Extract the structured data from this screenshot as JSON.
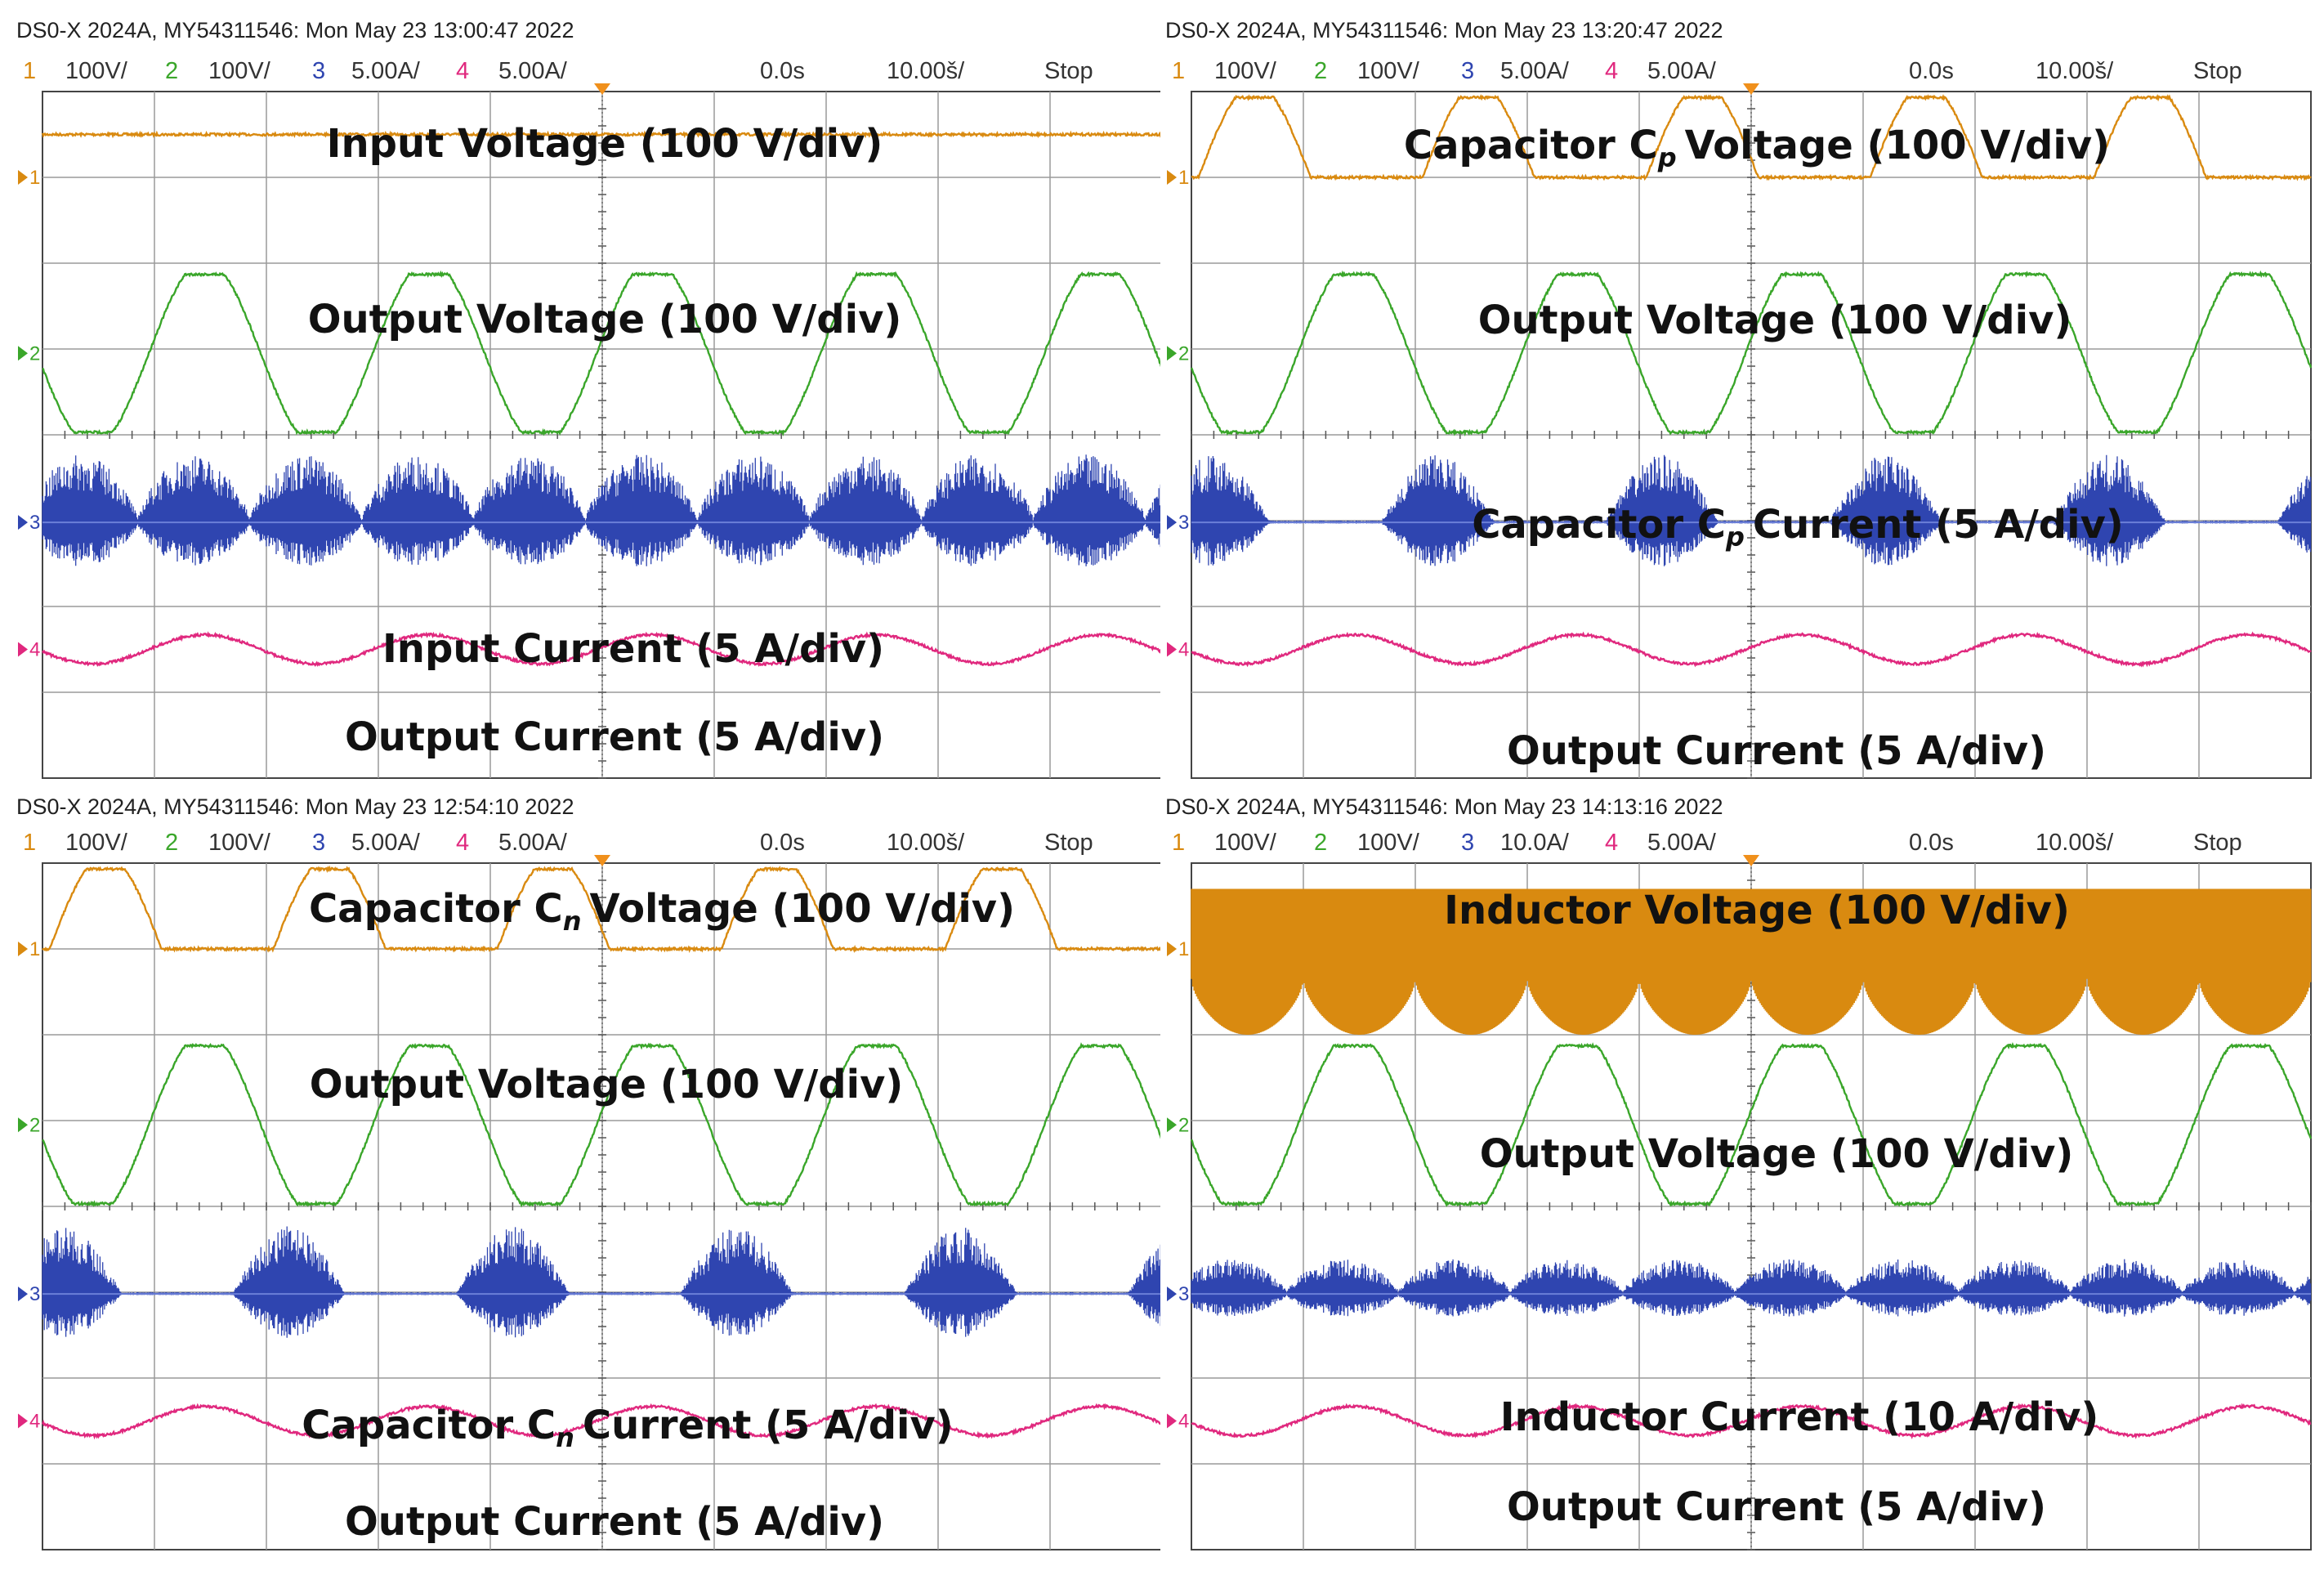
{
  "colors": {
    "ch1": "#d98a10",
    "ch2": "#3aa62a",
    "ch3": "#2f45b0",
    "ch4": "#e0287e",
    "grid": "#9a9a9a",
    "trigger": "#f0901c"
  },
  "scopes": [
    {
      "header": "DS0-X 2024A, MY54311546: Mon May 23 13:00:47 2022",
      "settings": {
        "ch1": {
          "num": "1",
          "scale": "100V/"
        },
        "ch2": {
          "num": "2",
          "scale": "100V/"
        },
        "ch3": {
          "num": "3",
          "scale": "5.00A/"
        },
        "ch4": {
          "num": "4",
          "scale": "5.00A/"
        },
        "delay": "0.0s",
        "timebase": "10.00š/",
        "state": "Stop"
      },
      "markers": [
        "1",
        "2",
        "3",
        "4"
      ],
      "labels": [
        "Input Voltage (100 V/div)",
        "Output Voltage (100 V/div)",
        "Input Current (5 A/div)",
        "Output Current (5 A/div)"
      ],
      "chart_data": {
        "type": "line",
        "x_unit": "ms",
        "x_per_div": 10,
        "divisions": {
          "x": 10,
          "y": 8
        },
        "series": [
          {
            "channel": "1",
            "kind": "dc",
            "level_div": 0.5
          },
          {
            "channel": "2",
            "kind": "sine",
            "amplitude_div": 1.0,
            "cycles": 5,
            "clipped": true
          },
          {
            "channel": "3",
            "kind": "switching-bursts",
            "bursts_per_screen": 10,
            "peak_div": 0.5
          },
          {
            "channel": "4",
            "kind": "sine",
            "amplitude_div": 0.17,
            "cycles": 5
          }
        ]
      }
    },
    {
      "header": "DS0-X 2024A, MY54311546: Mon May 23 13:20:47 2022",
      "settings": {
        "ch1": {
          "num": "1",
          "scale": "100V/"
        },
        "ch2": {
          "num": "2",
          "scale": "100V/"
        },
        "ch3": {
          "num": "3",
          "scale": "5.00A/"
        },
        "ch4": {
          "num": "4",
          "scale": "5.00A/"
        },
        "delay": "0.0s",
        "timebase": "10.00š/",
        "state": "Stop"
      },
      "markers": [
        "1",
        "2",
        "3",
        "4"
      ],
      "labels": [
        "Capacitor C",
        "p",
        "Voltage (100 V/div)",
        "Output Voltage (100 V/div)",
        "Capacitor C",
        "p",
        "Current (5 A/div)",
        "Output Current (5 A/div)"
      ],
      "chart_data": {
        "type": "line",
        "x_unit": "ms",
        "x_per_div": 10,
        "divisions": {
          "x": 10,
          "y": 8
        },
        "series": [
          {
            "channel": "1",
            "kind": "half-wave",
            "amplitude_div": 1.0,
            "half_cycles": 5
          },
          {
            "channel": "2",
            "kind": "sine",
            "amplitude_div": 1.0,
            "cycles": 5,
            "clipped": true
          },
          {
            "channel": "3",
            "kind": "switching-bursts",
            "bursts_per_screen": 5,
            "peak_div": 0.5
          },
          {
            "channel": "4",
            "kind": "sine",
            "amplitude_div": 0.17,
            "cycles": 5
          }
        ]
      }
    },
    {
      "header": "DS0-X 2024A, MY54311546: Mon May 23 12:54:10 2022",
      "settings": {
        "ch1": {
          "num": "1",
          "scale": "100V/"
        },
        "ch2": {
          "num": "2",
          "scale": "100V/"
        },
        "ch3": {
          "num": "3",
          "scale": "5.00A/"
        },
        "ch4": {
          "num": "4",
          "scale": "5.00A/"
        },
        "delay": "0.0s",
        "timebase": "10.00š/",
        "state": "Stop"
      },
      "markers": [
        "1",
        "2",
        "3",
        "4"
      ],
      "labels": [
        "Capacitor C",
        "n",
        "Voltage (100 V/div)",
        "Output Voltage (100 V/div)",
        "Capacitor C",
        "n",
        "Current (5 A/div)",
        "Output Current (5 A/div)"
      ],
      "chart_data": {
        "type": "line",
        "x_unit": "ms",
        "x_per_div": 10,
        "divisions": {
          "x": 10,
          "y": 8
        },
        "series": [
          {
            "channel": "1",
            "kind": "half-wave",
            "amplitude_div": 1.0,
            "half_cycles": 5
          },
          {
            "channel": "2",
            "kind": "sine",
            "amplitude_div": 1.0,
            "cycles": 5,
            "clipped": true
          },
          {
            "channel": "3",
            "kind": "switching-bursts",
            "bursts_per_screen": 5,
            "peak_div": 0.5
          },
          {
            "channel": "4",
            "kind": "sine",
            "amplitude_div": 0.17,
            "cycles": 5
          }
        ]
      }
    },
    {
      "header": "DS0-X 2024A, MY54311546: Mon May 23 14:13:16 2022",
      "settings": {
        "ch1": {
          "num": "1",
          "scale": "100V/"
        },
        "ch2": {
          "num": "2",
          "scale": "100V/"
        },
        "ch3": {
          "num": "3",
          "scale": "10.0A/"
        },
        "ch4": {
          "num": "4",
          "scale": "5.00A/"
        },
        "delay": "0.0s",
        "timebase": "10.00š/",
        "state": "Stop"
      },
      "markers": [
        "1",
        "2",
        "3",
        "4"
      ],
      "labels": [
        "Inductor Voltage (100 V/div)",
        "Output Voltage (100 V/div)",
        "Inductor Current (10 A/div)",
        "Output Current (5 A/div)"
      ],
      "chart_data": {
        "type": "line",
        "x_unit": "ms",
        "x_per_div": 10,
        "divisions": {
          "x": 10,
          "y": 8
        },
        "series": [
          {
            "channel": "1",
            "kind": "pwm-envelope",
            "bursts_per_screen": 10,
            "upper_div": 0.5,
            "lower_div": -1.0
          },
          {
            "channel": "2",
            "kind": "sine",
            "amplitude_div": 1.0,
            "cycles": 5,
            "clipped": true
          },
          {
            "channel": "3",
            "kind": "switching-bursts",
            "bursts_per_screen": 10,
            "peak_div": 0.25
          },
          {
            "channel": "4",
            "kind": "sine",
            "amplitude_div": 0.17,
            "cycles": 5
          }
        ]
      }
    }
  ]
}
